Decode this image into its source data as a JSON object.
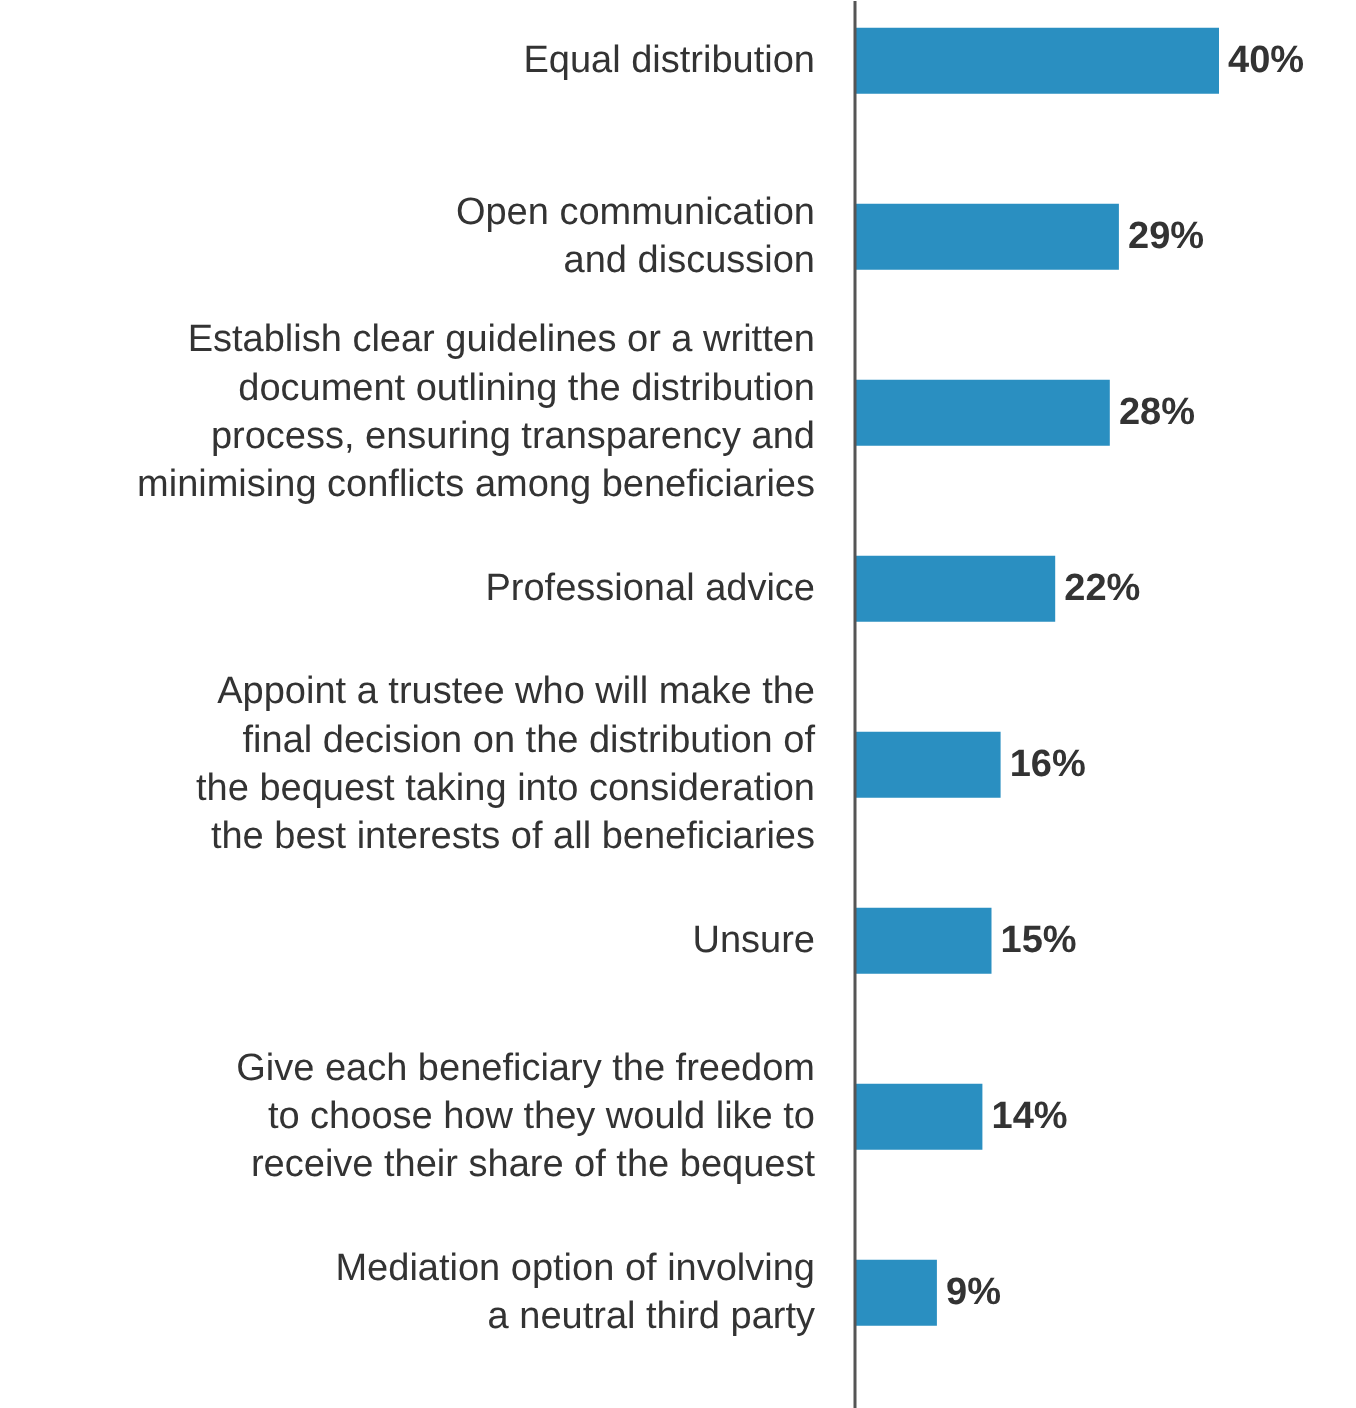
{
  "chart_data": {
    "type": "bar",
    "orientation": "horizontal",
    "categories": [
      "Equal distribution",
      "Open communication\nand discussion",
      "Establish clear guidelines or a written\ndocument outlining the distribution\nprocess, ensuring transparency and\nminimising conflicts among beneficiaries",
      "Professional advice",
      "Appoint a trustee who will make the\nfinal decision on the distribution of\nthe bequest taking into consideration\nthe best interests of all beneficiaries",
      "Unsure",
      "Give each beneficiary the freedom\nto choose how they would like to\nreceive their share of the bequest",
      "Mediation option of involving\na neutral third party"
    ],
    "values": [
      40,
      29,
      28,
      22,
      16,
      15,
      14,
      9
    ],
    "value_labels": [
      "40%",
      "29%",
      "28%",
      "22%",
      "16%",
      "15%",
      "14%",
      "9%"
    ],
    "color": "#2a8fc1",
    "grid": false
  }
}
